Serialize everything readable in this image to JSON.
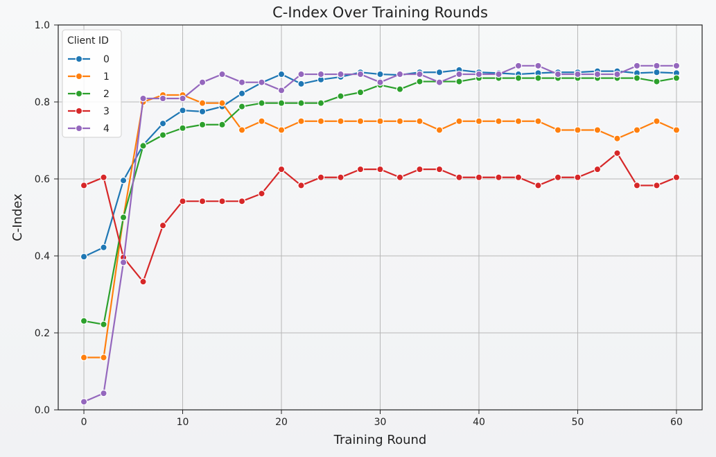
{
  "chart_data": {
    "type": "line",
    "title": "C-Index Over Training Rounds",
    "xlabel": "Training Round",
    "ylabel": "C-Index",
    "xlim": [
      -2.6,
      62.6
    ],
    "ylim": [
      0,
      1
    ],
    "grid": true,
    "legend_position": "top-left",
    "legend_title": "Client ID",
    "x_ticks": [
      0,
      10,
      20,
      30,
      40,
      50,
      60
    ],
    "y_ticks": [
      0.0,
      0.2,
      0.4,
      0.6,
      0.8,
      1.0
    ],
    "x_tick_labels": [
      "0",
      "10",
      "20",
      "30",
      "40",
      "50",
      "60"
    ],
    "y_tick_labels": [
      "0.0",
      "0.2",
      "0.4",
      "0.6",
      "0.8",
      "1.0"
    ],
    "x": [
      0,
      2,
      4,
      6,
      8,
      10,
      12,
      14,
      16,
      18,
      20,
      22,
      24,
      26,
      28,
      30,
      32,
      34,
      36,
      38,
      40,
      42,
      44,
      46,
      48,
      50,
      52,
      54,
      56,
      58,
      60
    ],
    "series": [
      {
        "name": "0",
        "color": "#1f77b4",
        "values": [
          0.398,
          0.422,
          0.596,
          0.688,
          0.744,
          0.778,
          0.775,
          0.788,
          0.822,
          0.85,
          0.872,
          0.847,
          0.858,
          0.865,
          0.877,
          0.872,
          0.87,
          0.877,
          0.877,
          0.883,
          0.877,
          0.875,
          0.872,
          0.875,
          0.877,
          0.877,
          0.88,
          0.88,
          0.875,
          0.877,
          0.875
        ]
      },
      {
        "name": "1",
        "color": "#ff7f0e",
        "values": [
          0.136,
          0.136,
          0.5,
          0.8,
          0.818,
          0.818,
          0.797,
          0.797,
          0.727,
          0.75,
          0.727,
          0.75,
          0.75,
          0.75,
          0.75,
          0.75,
          0.75,
          0.75,
          0.727,
          0.75,
          0.75,
          0.75,
          0.75,
          0.75,
          0.727,
          0.727,
          0.727,
          0.705,
          0.727,
          0.75,
          0.727
        ]
      },
      {
        "name": "2",
        "color": "#2ca02c",
        "values": [
          0.231,
          0.222,
          0.5,
          0.686,
          0.714,
          0.732,
          0.741,
          0.741,
          0.788,
          0.797,
          0.797,
          0.797,
          0.797,
          0.815,
          0.825,
          0.844,
          0.833,
          0.853,
          0.853,
          0.853,
          0.862,
          0.862,
          0.862,
          0.862,
          0.862,
          0.862,
          0.862,
          0.862,
          0.862,
          0.853,
          0.862
        ]
      },
      {
        "name": "3",
        "color": "#d62728",
        "values": [
          0.583,
          0.604,
          0.396,
          0.333,
          0.479,
          0.542,
          0.542,
          0.542,
          0.542,
          0.562,
          0.625,
          0.583,
          0.604,
          0.604,
          0.625,
          0.625,
          0.604,
          0.625,
          0.625,
          0.604,
          0.604,
          0.604,
          0.604,
          0.583,
          0.604,
          0.604,
          0.625,
          0.667,
          0.583,
          0.583,
          0.604
        ]
      },
      {
        "name": "4",
        "color": "#9467bd",
        "values": [
          0.021,
          0.043,
          0.383,
          0.809,
          0.809,
          0.809,
          0.851,
          0.872,
          0.851,
          0.851,
          0.83,
          0.872,
          0.872,
          0.872,
          0.872,
          0.851,
          0.872,
          0.872,
          0.851,
          0.872,
          0.872,
          0.872,
          0.894,
          0.894,
          0.872,
          0.872,
          0.872,
          0.872,
          0.894,
          0.894,
          0.894
        ]
      }
    ]
  }
}
